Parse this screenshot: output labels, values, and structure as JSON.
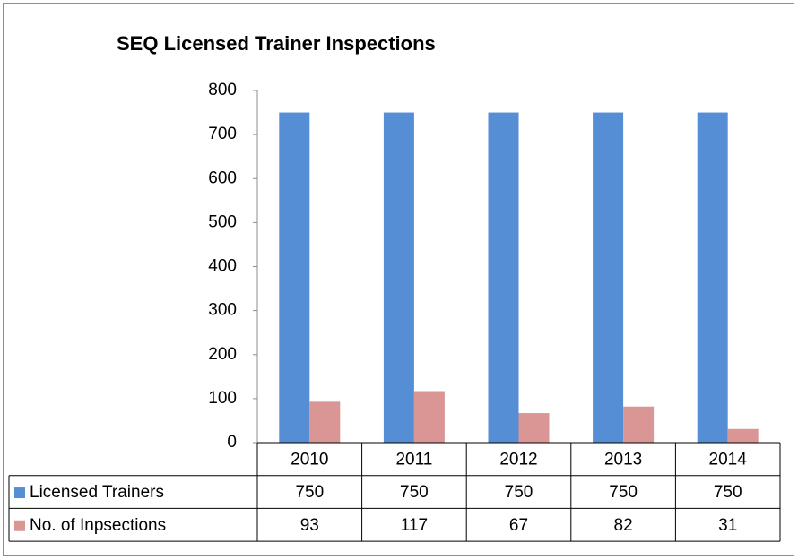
{
  "chart_data": {
    "type": "bar",
    "title": "SEQ Licensed Trainer Inspections",
    "categories": [
      "2010",
      "2011",
      "2012",
      "2013",
      "2014"
    ],
    "series": [
      {
        "name": "Licensed Trainers",
        "color": "#558ed5",
        "values": [
          750,
          750,
          750,
          750,
          750
        ]
      },
      {
        "name": "No. of Inpsections",
        "color": "#d99694",
        "values": [
          93,
          117,
          67,
          82,
          31
        ]
      }
    ],
    "ylim": [
      0,
      800
    ],
    "yticks": [
      0,
      100,
      200,
      300,
      400,
      500,
      600,
      700,
      800
    ],
    "grid": false,
    "data_table": true
  }
}
